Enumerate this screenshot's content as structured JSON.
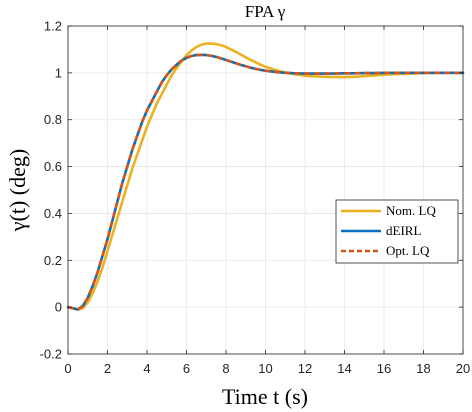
{
  "chart_data": {
    "type": "line",
    "title": "FPA γ",
    "xlabel": "Time t (s)",
    "ylabel": "γ(t) (deg)",
    "xlim": [
      0,
      20
    ],
    "ylim": [
      -0.2,
      1.2
    ],
    "xticks": [
      0,
      2,
      4,
      6,
      8,
      10,
      12,
      14,
      16,
      18,
      20
    ],
    "yticks": [
      -0.2,
      0,
      0.2,
      0.4,
      0.6,
      0.8,
      1,
      1.2
    ],
    "xtick_labels": [
      "0",
      "2",
      "4",
      "6",
      "8",
      "10",
      "12",
      "14",
      "16",
      "18",
      "20"
    ],
    "ytick_labels": [
      "-0.2",
      "0",
      "0.2",
      "0.4",
      "0.6",
      "0.8",
      "1",
      "1.2"
    ],
    "grid": true,
    "legend_position": "right",
    "x": [
      0,
      0.25,
      0.5,
      0.75,
      1,
      1.25,
      1.5,
      1.75,
      2,
      2.25,
      2.5,
      2.75,
      3,
      3.25,
      3.5,
      3.75,
      4,
      4.25,
      4.5,
      4.75,
      5,
      5.25,
      5.5,
      5.75,
      6,
      6.25,
      6.5,
      6.75,
      7,
      7.25,
      7.5,
      7.75,
      8,
      8.25,
      8.5,
      8.75,
      9,
      9.25,
      9.5,
      9.75,
      10,
      10.5,
      11,
      11.5,
      12,
      12.5,
      13,
      13.5,
      14,
      14.5,
      15,
      15.5,
      16,
      17,
      18,
      19,
      20
    ],
    "series": [
      {
        "name": "Nom. LQ",
        "color": "#EDB120",
        "style": "solid",
        "values": [
          0,
          -0.005,
          -0.01,
          -0.005,
          0.02,
          0.06,
          0.11,
          0.17,
          0.24,
          0.31,
          0.38,
          0.45,
          0.52,
          0.59,
          0.65,
          0.71,
          0.77,
          0.82,
          0.87,
          0.91,
          0.95,
          0.99,
          1.02,
          1.05,
          1.075,
          1.095,
          1.11,
          1.12,
          1.125,
          1.125,
          1.123,
          1.118,
          1.11,
          1.1,
          1.09,
          1.078,
          1.066,
          1.055,
          1.045,
          1.035,
          1.026,
          1.012,
          1.002,
          0.994,
          0.988,
          0.985,
          0.983,
          0.982,
          0.982,
          0.983,
          0.986,
          0.989,
          0.992,
          0.996,
          0.999,
          1.0,
          1.0
        ]
      },
      {
        "name": "dEIRL",
        "color": "#0072BD",
        "style": "solid",
        "values": [
          0,
          -0.005,
          -0.01,
          0.005,
          0.04,
          0.09,
          0.15,
          0.22,
          0.29,
          0.37,
          0.45,
          0.53,
          0.6,
          0.67,
          0.73,
          0.79,
          0.84,
          0.88,
          0.92,
          0.96,
          0.99,
          1.015,
          1.035,
          1.052,
          1.064,
          1.072,
          1.076,
          1.077,
          1.076,
          1.073,
          1.068,
          1.062,
          1.055,
          1.048,
          1.041,
          1.034,
          1.028,
          1.022,
          1.017,
          1.013,
          1.009,
          1.004,
          1.0,
          0.998,
          0.997,
          0.997,
          0.997,
          0.997,
          0.998,
          0.998,
          0.999,
          0.999,
          1.0,
          1.0,
          1.0,
          1.0,
          1.0
        ]
      },
      {
        "name": "Opt. LQ",
        "color": "#D95319",
        "style": "dashed",
        "values": [
          0,
          -0.005,
          -0.01,
          0.005,
          0.04,
          0.09,
          0.15,
          0.22,
          0.29,
          0.37,
          0.45,
          0.53,
          0.6,
          0.67,
          0.73,
          0.79,
          0.84,
          0.88,
          0.92,
          0.96,
          0.99,
          1.015,
          1.035,
          1.052,
          1.064,
          1.072,
          1.076,
          1.077,
          1.076,
          1.073,
          1.068,
          1.062,
          1.055,
          1.048,
          1.041,
          1.034,
          1.028,
          1.022,
          1.017,
          1.013,
          1.009,
          1.004,
          1.0,
          0.998,
          0.997,
          0.997,
          0.997,
          0.997,
          0.998,
          0.998,
          0.999,
          0.999,
          1.0,
          1.0,
          1.0,
          1.0,
          1.0
        ]
      }
    ]
  }
}
